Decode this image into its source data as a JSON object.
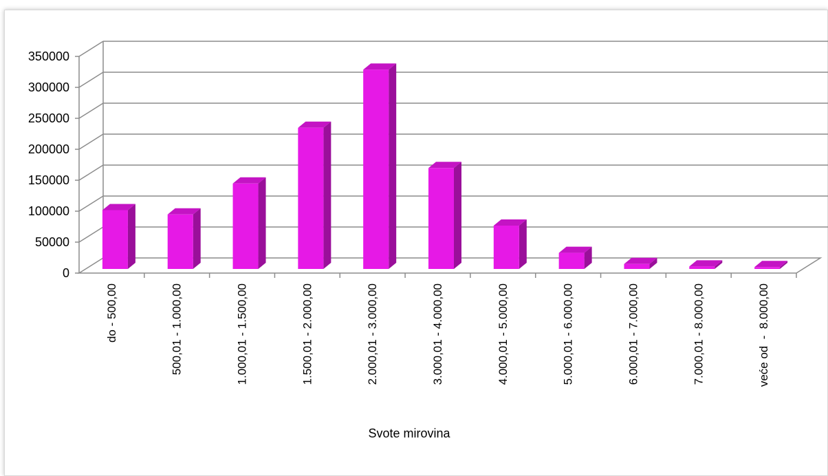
{
  "chart_data": {
    "type": "bar",
    "xlabel": "Svote mirovina",
    "ylabel": "",
    "ylim": [
      0,
      350000
    ],
    "yticks": [
      "0",
      "50000",
      "100000",
      "150000",
      "200000",
      "250000",
      "300000",
      "350000"
    ],
    "categories": [
      "do - 500,00",
      "500,01 - 1.000,00",
      "1.000,01 - 1.500,00",
      "1.500,01 - 2.000,00",
      "2.000,01 - 3.000,00",
      "3.000,01 - 4.000,00",
      "4.000,01 - 5.000,00",
      "5.000,01 - 6.000,00",
      "6.000,01 - 7.000,00",
      "7.000,01 - 8.000,00",
      "veće od  -  8.000,00"
    ],
    "values": [
      95000,
      88000,
      138000,
      228000,
      322000,
      163000,
      70000,
      26000,
      8000,
      4000,
      3000
    ],
    "grid": true,
    "bar_color": "#e619e6",
    "bar_side_color": "#9a0f9a",
    "bar_top_color": "#c414c4"
  }
}
